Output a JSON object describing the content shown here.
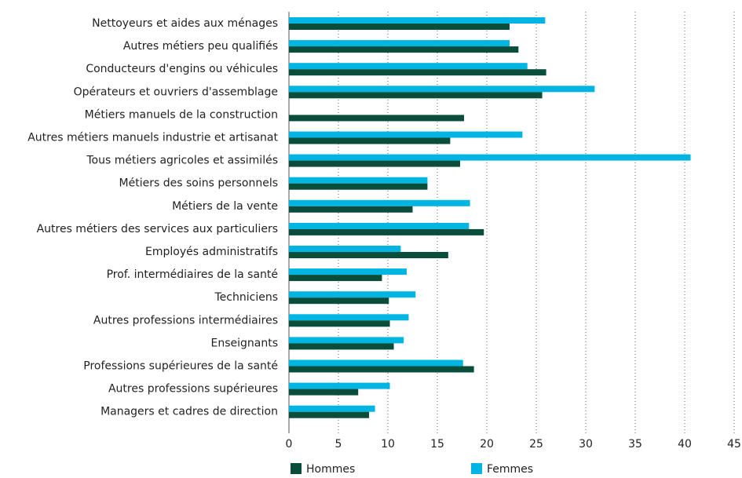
{
  "chart_data": {
    "type": "barh",
    "categories": [
      "Nettoyeurs et aides aux ménages",
      "Autres métiers peu qualifiés",
      "Conducteurs d'engins ou véhicules",
      "Opérateurs et ouvriers d'assemblage",
      "Métiers manuels de la construction",
      "Autres métiers manuels industrie et artisanat",
      "Tous métiers agricoles et assimilés",
      "Métiers des soins personnels",
      "Métiers de la vente",
      "Autres métiers des services aux particuliers",
      "Employés administratifs",
      "Prof. intermédiaires de la santé",
      "Techniciens",
      "Autres professions intermédiaires",
      "Enseignants",
      "Professions supérieures de la santé",
      "Autres professions supérieures",
      "Managers et cadres de direction"
    ],
    "series": [
      {
        "name": "Hommes",
        "color": "#0b4d3b",
        "values": [
          22.3,
          23.2,
          26.0,
          25.6,
          17.7,
          16.3,
          17.3,
          14.0,
          12.5,
          19.7,
          16.1,
          9.4,
          10.1,
          10.2,
          10.6,
          18.7,
          7.0,
          8.1
        ]
      },
      {
        "name": "Femmes",
        "color": "#00b5e2",
        "values": [
          25.9,
          22.3,
          24.1,
          30.9,
          null,
          23.6,
          40.6,
          14.0,
          18.3,
          18.2,
          11.3,
          11.9,
          12.8,
          12.1,
          11.6,
          17.6,
          10.2,
          8.7
        ]
      }
    ],
    "xlim": [
      0,
      45
    ],
    "xticks": [
      0,
      5,
      10,
      15,
      20,
      25,
      30,
      35,
      40,
      45
    ],
    "grid": true
  }
}
